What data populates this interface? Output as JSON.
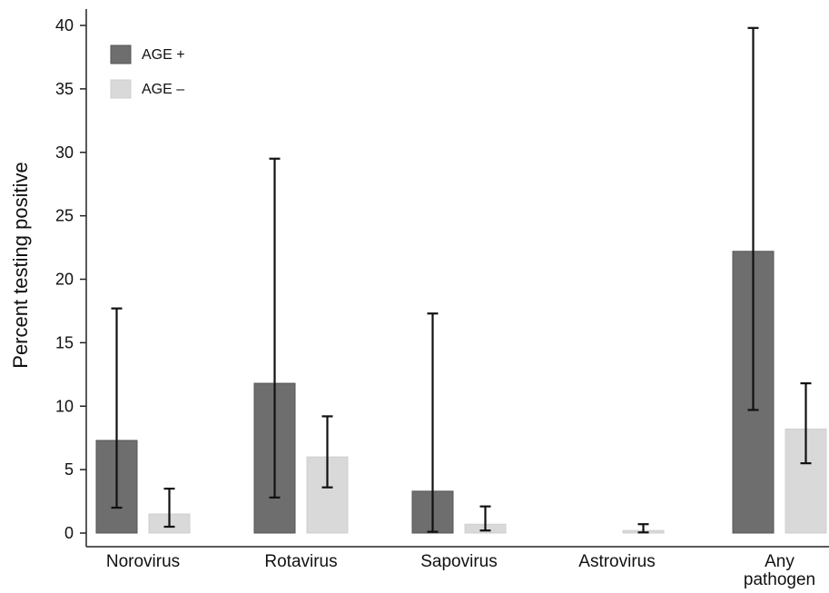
{
  "chart_data": {
    "type": "bar",
    "ylabel": "Percent testing positive",
    "ylim": [
      0,
      40
    ],
    "yticks": [
      "0",
      "5",
      "10",
      "15",
      "20",
      "25",
      "30",
      "35",
      "40"
    ],
    "ytick_values": [
      0,
      5,
      10,
      15,
      20,
      25,
      30,
      35,
      40
    ],
    "categories": [
      {
        "lines": [
          "Norovirus"
        ]
      },
      {
        "lines": [
          "Rotavirus"
        ]
      },
      {
        "lines": [
          "Sapovirus"
        ]
      },
      {
        "lines": [
          "Astrovirus"
        ]
      },
      {
        "lines": [
          "Any",
          "pathogen"
        ]
      }
    ],
    "series": [
      {
        "name": "AGE +",
        "color": "#6e6e6e",
        "values": [
          7.3,
          11.8,
          3.3,
          0,
          22.2
        ],
        "err_low": [
          2.0,
          2.8,
          0.1,
          null,
          9.7
        ],
        "err_high": [
          17.7,
          29.5,
          17.3,
          null,
          39.8
        ]
      },
      {
        "name": "AGE –",
        "color": "#d9d9d9",
        "values": [
          1.5,
          6.0,
          0.7,
          0.2,
          8.2
        ],
        "err_low": [
          0.5,
          3.6,
          0.2,
          0.05,
          5.5
        ],
        "err_high": [
          3.5,
          9.2,
          2.1,
          0.7,
          11.8
        ]
      }
    ],
    "legend_position": "top-left",
    "grid": false
  }
}
